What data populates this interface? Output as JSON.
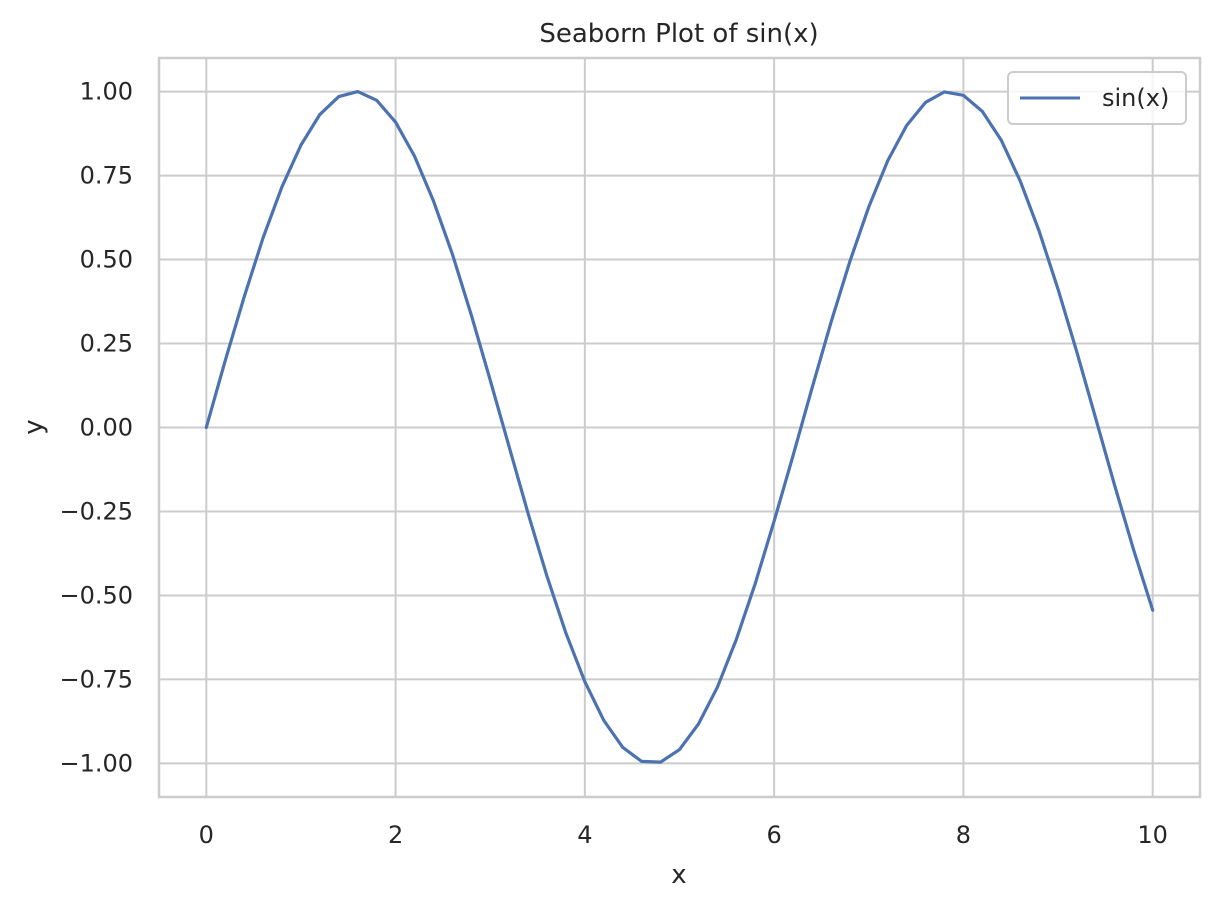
{
  "chart_data": {
    "type": "line",
    "title": "Seaborn Plot of sin(x)",
    "xlabel": "x",
    "ylabel": "y",
    "xlim": [
      -0.5,
      10.5
    ],
    "ylim": [
      -1.1,
      1.1
    ],
    "x_ticks": [
      0,
      2,
      4,
      6,
      8,
      10
    ],
    "x_tick_labels": [
      "0",
      "2",
      "4",
      "6",
      "8",
      "10"
    ],
    "y_ticks": [
      1.0,
      0.75,
      0.5,
      0.25,
      0.0,
      -0.25,
      -0.5,
      -0.75,
      -1.0
    ],
    "y_tick_labels": [
      "1.00",
      "0.75",
      "0.50",
      "0.25",
      "0.00",
      "−0.25",
      "−0.50",
      "−0.75",
      "−1.00"
    ],
    "grid": true,
    "legend": {
      "position": "top-right",
      "entries": [
        "sin(x)"
      ]
    },
    "series": [
      {
        "name": "sin(x)",
        "color": "#4c72b0",
        "x": [
          0.0,
          0.2,
          0.4,
          0.6,
          0.8,
          1.0,
          1.2,
          1.4,
          1.6,
          1.8,
          2.0,
          2.2,
          2.4,
          2.6,
          2.8,
          3.0,
          3.2,
          3.4,
          3.6,
          3.8,
          4.0,
          4.2,
          4.4,
          4.6,
          4.8,
          5.0,
          5.2,
          5.4,
          5.6,
          5.8,
          6.0,
          6.2,
          6.4,
          6.6,
          6.8,
          7.0,
          7.2,
          7.4,
          7.6,
          7.8,
          8.0,
          8.2,
          8.4,
          8.6,
          8.8,
          9.0,
          9.2,
          9.4,
          9.6,
          9.8,
          10.0
        ],
        "y": [
          0.0,
          0.199,
          0.389,
          0.565,
          0.717,
          0.841,
          0.932,
          0.985,
          1.0,
          0.974,
          0.909,
          0.808,
          0.675,
          0.516,
          0.335,
          0.141,
          -0.058,
          -0.256,
          -0.443,
          -0.612,
          -0.757,
          -0.872,
          -0.952,
          -0.994,
          -0.996,
          -0.959,
          -0.883,
          -0.773,
          -0.631,
          -0.465,
          -0.279,
          -0.083,
          0.117,
          0.312,
          0.494,
          0.657,
          0.794,
          0.899,
          0.968,
          0.999,
          0.989,
          0.941,
          0.855,
          0.734,
          0.585,
          0.412,
          0.223,
          0.025,
          -0.174,
          -0.366,
          -0.544
        ]
      }
    ]
  }
}
